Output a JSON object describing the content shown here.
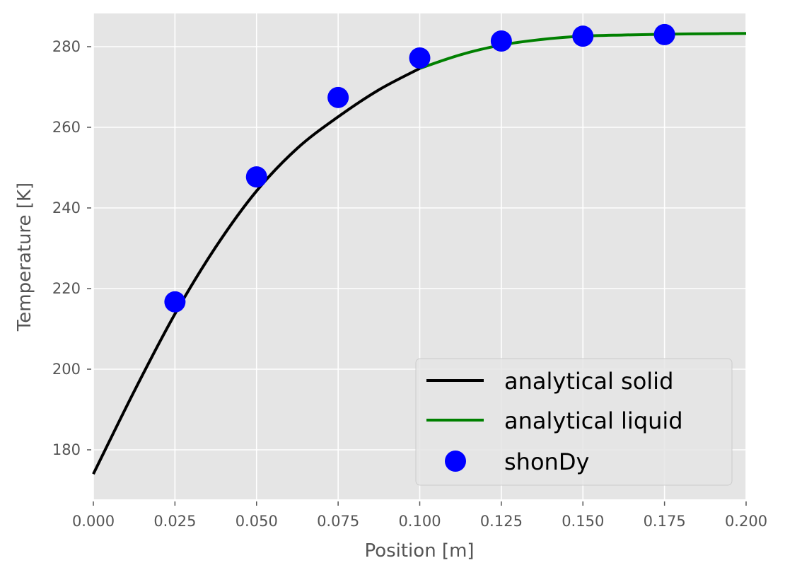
{
  "chart_data": {
    "type": "line",
    "title": "",
    "xlabel": "Position [m]",
    "ylabel": "Temperature [K]",
    "xlim": [
      0.0,
      0.2
    ],
    "ylim": [
      168,
      289
    ],
    "grid": true,
    "legend_position": "lower right",
    "x_ticks": [
      "0.000",
      "0.025",
      "0.050",
      "0.075",
      "0.100",
      "0.125",
      "0.150",
      "0.175",
      "0.200"
    ],
    "y_ticks": [
      "180",
      "200",
      "220",
      "240",
      "260",
      "280"
    ],
    "series": [
      {
        "name": "analytical solid",
        "style": "line",
        "color": "#000000",
        "x": [
          0.0,
          0.0125,
          0.025,
          0.0375,
          0.05,
          0.0625,
          0.075,
          0.0875,
          0.1
        ],
        "y": [
          174.0,
          194.5,
          213.7,
          230.3,
          244.2,
          254.8,
          262.6,
          269.3,
          274.6
        ]
      },
      {
        "name": "analytical liquid",
        "style": "line",
        "color": "#008000",
        "x": [
          0.1,
          0.1125,
          0.125,
          0.1375,
          0.15,
          0.1625,
          0.175,
          0.1875,
          0.2
        ],
        "y": [
          274.6,
          278.0,
          280.4,
          281.8,
          282.6,
          282.9,
          283.1,
          283.2,
          283.3
        ]
      },
      {
        "name": "shonDy",
        "style": "marker",
        "color": "#0000ff",
        "x": [
          0.025,
          0.05,
          0.075,
          0.1,
          0.125,
          0.15,
          0.175
        ],
        "y": [
          216.7,
          247.7,
          267.4,
          277.2,
          281.4,
          282.6,
          283.0
        ]
      }
    ]
  },
  "colors": {
    "plot_background": "#e5e5e5",
    "grid": "#ffffff",
    "tick_text": "#555555",
    "legend_background": "#e5e5e5",
    "legend_border": "#cccccc"
  }
}
